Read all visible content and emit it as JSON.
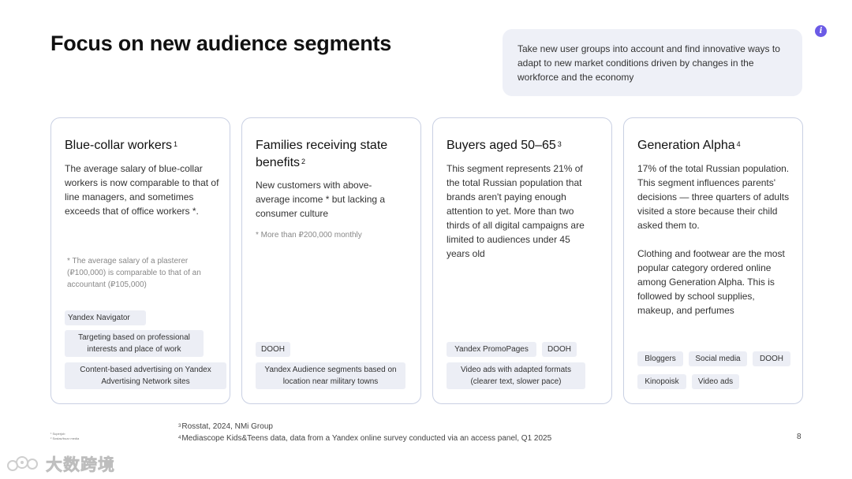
{
  "title": "Focus on new audience segments",
  "callout": {
    "text": "Take new user groups into account and find innovative ways to adapt to new market conditions driven by changes in the workforce and the economy",
    "icon": "info-icon"
  },
  "cards": [
    {
      "title": "Blue-collar workers",
      "sup": "1",
      "body": "The average salary of blue-collar workers is now comparable to that of line managers, and sometimes exceeds that of office workers *.",
      "note": "* The average salary of a plasterer (₽100,000) is comparable to that of an accountant (₽105,000)",
      "tags": [
        "Yandex Navigator",
        "Targeting based on professional interests and place of work",
        "Content-based advertising on Yandex Advertising Network sites"
      ]
    },
    {
      "title": "Families receiving state benefits",
      "sup": "2",
      "body": "New customers with above-average income * but lacking a consumer culture",
      "note": "* More than ₽200,000 monthly",
      "tags": [
        "DOOH",
        "Yandex Audience segments based on location near military towns"
      ]
    },
    {
      "title": "Buyers aged 50–65",
      "sup": "3",
      "body": "This segment represents 21% of the total Russian population that brands aren't paying enough attention to yet. More than two thirds of all digital campaigns are limited to audiences under 45 years old",
      "tags": [
        "Yandex PromoPages",
        "DOOH",
        "Video ads with adapted formats (clearer text, slower pace)"
      ]
    },
    {
      "title": "Generation Alpha",
      "sup": "4",
      "body": "17% of the total Russian population. This segment influences parents' decisions — three quarters of adults visited a store because their child asked them to.",
      "body2": "Clothing and footwear are the most popular category ordered online among Generation Alpha. This is followed by school supplies, makeup, and perfumes",
      "tags": [
        "Bloggers",
        "Social media",
        "DOOH",
        "Kinopoisk",
        "Video ads"
      ]
    }
  ],
  "footnotes": [
    {
      "num": "3",
      "text": "Rosstat, 2024, NMi Group"
    },
    {
      "num": "4",
      "text": "Mediascope Kids&Teens data, data from a Yandex online survey conducted via an access panel, Q1 2025"
    }
  ],
  "tiny_notes": [
    "¹ Superjob",
    "² Sostav/buzz media"
  ],
  "page_number": "8",
  "watermark": {
    "text": "大数跨境",
    "icon": "watermark-logo-icon"
  }
}
